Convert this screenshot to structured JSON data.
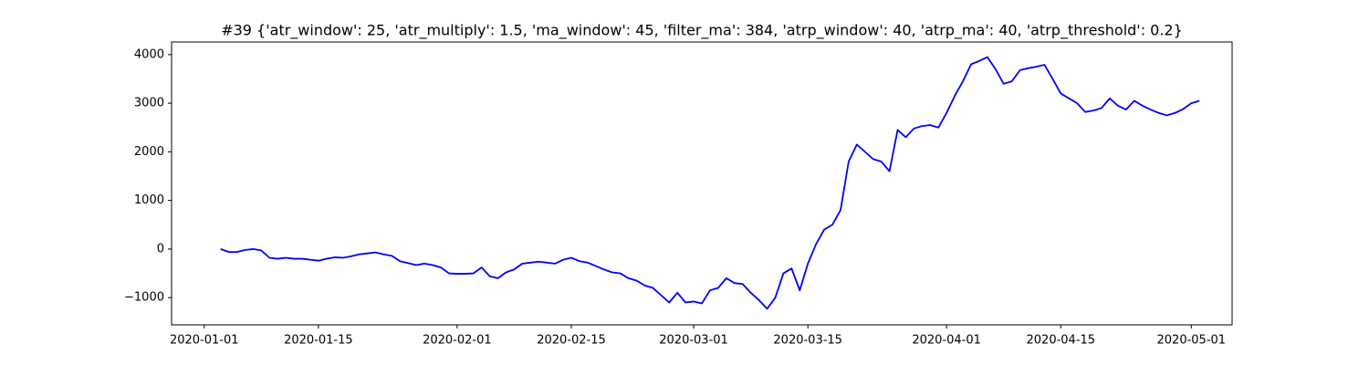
{
  "chart_data": {
    "type": "line",
    "title": "#39 {'atr_window': 25, 'atr_multiply': 1.5, 'ma_window': 45, 'filter_ma': 384, 'atrp_window': 40, 'atrp_ma': 40, 'atrp_threshold': 0.2}",
    "color": "#0000ff",
    "x": [
      "2020-01-03",
      "2020-01-04",
      "2020-01-05",
      "2020-01-06",
      "2020-01-07",
      "2020-01-08",
      "2020-01-09",
      "2020-01-10",
      "2020-01-11",
      "2020-01-12",
      "2020-01-13",
      "2020-01-14",
      "2020-01-15",
      "2020-01-16",
      "2020-01-17",
      "2020-01-18",
      "2020-01-19",
      "2020-01-20",
      "2020-01-21",
      "2020-01-22",
      "2020-01-23",
      "2020-01-24",
      "2020-01-25",
      "2020-01-26",
      "2020-01-27",
      "2020-01-28",
      "2020-01-29",
      "2020-01-30",
      "2020-01-31",
      "2020-02-01",
      "2020-02-02",
      "2020-02-03",
      "2020-02-04",
      "2020-02-05",
      "2020-02-06",
      "2020-02-07",
      "2020-02-08",
      "2020-02-09",
      "2020-02-10",
      "2020-02-11",
      "2020-02-12",
      "2020-02-13",
      "2020-02-14",
      "2020-02-15",
      "2020-02-16",
      "2020-02-17",
      "2020-02-18",
      "2020-02-19",
      "2020-02-20",
      "2020-02-21",
      "2020-02-22",
      "2020-02-23",
      "2020-02-24",
      "2020-02-25",
      "2020-02-26",
      "2020-02-27",
      "2020-02-28",
      "2020-02-29",
      "2020-03-01",
      "2020-03-02",
      "2020-03-03",
      "2020-03-04",
      "2020-03-05",
      "2020-03-06",
      "2020-03-07",
      "2020-03-08",
      "2020-03-09",
      "2020-03-10",
      "2020-03-11",
      "2020-03-12",
      "2020-03-13",
      "2020-03-14",
      "2020-03-15",
      "2020-03-16",
      "2020-03-17",
      "2020-03-18",
      "2020-03-19",
      "2020-03-20",
      "2020-03-21",
      "2020-03-22",
      "2020-03-23",
      "2020-03-24",
      "2020-03-25",
      "2020-03-26",
      "2020-03-27",
      "2020-03-28",
      "2020-03-29",
      "2020-03-30",
      "2020-03-31",
      "2020-04-01",
      "2020-04-02",
      "2020-04-03",
      "2020-04-04",
      "2020-04-05",
      "2020-04-06",
      "2020-04-07",
      "2020-04-08",
      "2020-04-09",
      "2020-04-10",
      "2020-04-11",
      "2020-04-12",
      "2020-04-13",
      "2020-04-14",
      "2020-04-15",
      "2020-04-16",
      "2020-04-17",
      "2020-04-18",
      "2020-04-19",
      "2020-04-20",
      "2020-04-21",
      "2020-04-22",
      "2020-04-23",
      "2020-04-24",
      "2020-04-25",
      "2020-04-26",
      "2020-04-27",
      "2020-04-28",
      "2020-04-29",
      "2020-04-30",
      "2020-05-01",
      "2020-05-02"
    ],
    "values": [
      0,
      -60,
      -60,
      -20,
      0,
      -30,
      -180,
      -200,
      -180,
      -200,
      -200,
      -220,
      -240,
      -200,
      -170,
      -180,
      -150,
      -110,
      -90,
      -70,
      -110,
      -140,
      -250,
      -290,
      -330,
      -300,
      -330,
      -380,
      -500,
      -510,
      -510,
      -500,
      -380,
      -560,
      -600,
      -480,
      -420,
      -300,
      -280,
      -260,
      -280,
      -300,
      -220,
      -180,
      -250,
      -280,
      -350,
      -420,
      -480,
      -500,
      -600,
      -650,
      -750,
      -800,
      -950,
      -1100,
      -900,
      -1100,
      -1080,
      -1120,
      -850,
      -800,
      -600,
      -700,
      -720,
      -900,
      -1050,
      -1230,
      -1000,
      -500,
      -400,
      -850,
      -300,
      100,
      400,
      500,
      800,
      1800,
      2150,
      2000,
      1850,
      1800,
      1600,
      2450,
      2300,
      2480,
      2530,
      2550,
      2500,
      2800,
      3150,
      3450,
      3800,
      3870,
      3950,
      3700,
      3400,
      3450,
      3680,
      3720,
      3750,
      3790,
      3500,
      3200,
      3100,
      3000,
      2820,
      2850,
      2900,
      3100,
      2950,
      2870,
      3050,
      2950,
      2870,
      2800,
      2750,
      2800,
      2880,
      3000,
      3050
    ],
    "xlim": [
      "2019-12-28",
      "2020-05-06"
    ],
    "xticks": [
      "2020-01-01",
      "2020-01-15",
      "2020-02-01",
      "2020-02-15",
      "2020-03-01",
      "2020-03-15",
      "2020-04-01",
      "2020-04-15",
      "2020-05-01"
    ],
    "ylim": [
      -1560,
      4260
    ],
    "yticks": [
      {
        "value": -1000,
        "label": "−1000"
      },
      0,
      1000,
      2000,
      3000,
      4000
    ]
  }
}
